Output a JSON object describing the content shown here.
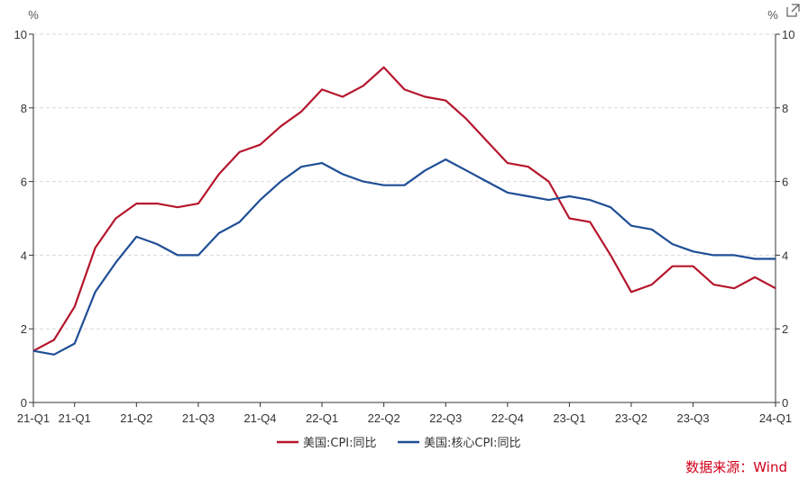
{
  "export_icon": "external-link-icon",
  "source": "数据来源：Wind",
  "chart_data": {
    "type": "line",
    "y_unit_left": "%",
    "y_unit_right": "%",
    "ylim": [
      0,
      10
    ],
    "y_ticks": [
      0,
      2,
      4,
      6,
      8,
      10
    ],
    "grid": true,
    "legend_position": "bottom-center",
    "x_tick_labels": [
      "21-Q1",
      "21-Q1",
      "21-Q2",
      "21-Q3",
      "21-Q4",
      "22-Q1",
      "22-Q2",
      "22-Q3",
      "22-Q4",
      "23-Q1",
      "23-Q2",
      "23-Q3",
      "24-Q1"
    ],
    "x_tick_index": [
      0,
      2,
      5,
      8,
      11,
      14,
      17,
      20,
      23,
      26,
      29,
      32,
      36
    ],
    "x": [
      "2021-01",
      "2021-02",
      "2021-03",
      "2021-04",
      "2021-05",
      "2021-06",
      "2021-07",
      "2021-08",
      "2021-09",
      "2021-10",
      "2021-11",
      "2021-12",
      "2022-01",
      "2022-02",
      "2022-03",
      "2022-04",
      "2022-05",
      "2022-06",
      "2022-07",
      "2022-08",
      "2022-09",
      "2022-10",
      "2022-11",
      "2022-12",
      "2023-01",
      "2023-02",
      "2023-03",
      "2023-04",
      "2023-05",
      "2023-06",
      "2023-07",
      "2023-08",
      "2023-09",
      "2023-10",
      "2023-11",
      "2023-12",
      "2024-01"
    ],
    "series": [
      {
        "name": "美国:CPI:同比",
        "color": "#b5162c",
        "values": [
          1.4,
          1.7,
          2.6,
          4.2,
          5.0,
          5.4,
          5.4,
          5.3,
          5.4,
          6.2,
          6.8,
          7.0,
          7.5,
          7.9,
          8.5,
          8.3,
          8.6,
          9.1,
          8.5,
          8.3,
          8.2,
          7.7,
          7.1,
          6.5,
          6.4,
          6.0,
          5.0,
          4.9,
          4.0,
          3.0,
          3.2,
          3.7,
          3.7,
          3.2,
          3.1,
          3.4,
          3.1
        ]
      },
      {
        "name": "美国:核心CPI:同比",
        "color": "#1f4e96",
        "values": [
          1.4,
          1.3,
          1.6,
          3.0,
          3.8,
          4.5,
          4.3,
          4.0,
          4.0,
          4.6,
          4.9,
          5.5,
          6.0,
          6.4,
          6.5,
          6.2,
          6.0,
          5.9,
          5.9,
          6.3,
          6.6,
          6.3,
          6.0,
          5.7,
          5.6,
          5.5,
          5.6,
          5.5,
          5.3,
          4.8,
          4.7,
          4.3,
          4.1,
          4.0,
          4.0,
          3.9,
          3.9
        ]
      }
    ]
  }
}
